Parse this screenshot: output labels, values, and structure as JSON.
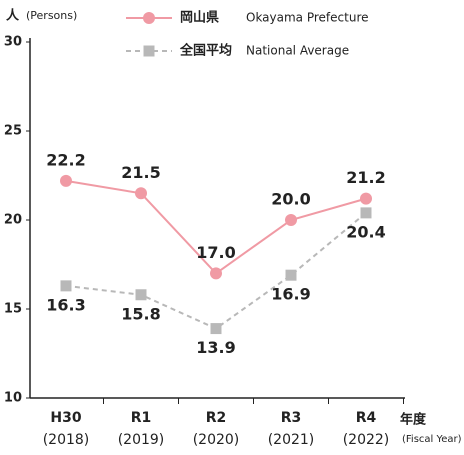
{
  "chart_data": {
    "type": "line",
    "y_label": "人",
    "y_unit": "(Persons)",
    "x_label": "年度",
    "x_unit": "(Fiscal Year)",
    "categories": [
      "H30",
      "R1",
      "R2",
      "R3",
      "R4"
    ],
    "category_years": [
      "(2018)",
      "(2019)",
      "(2020)",
      "(2021)",
      "(2022)"
    ],
    "ylim": [
      10,
      30
    ],
    "yticks": [
      10,
      15,
      20,
      25,
      30
    ],
    "series": [
      {
        "name": "岡山県",
        "name_en": "Okayama Prefecture",
        "color": "#f09aa4",
        "marker": "circle",
        "dashed": false,
        "label_side": "above",
        "values": [
          22.2,
          21.5,
          17.0,
          20.0,
          21.2
        ],
        "value_labels": [
          "22.2",
          "21.5",
          "17.0",
          "20.0",
          "21.2"
        ]
      },
      {
        "name": "全国平均",
        "name_en": "National Average",
        "color": "#b8b8b8",
        "marker": "square",
        "dashed": true,
        "label_side": "below",
        "values": [
          16.3,
          15.8,
          13.9,
          16.9,
          20.4
        ],
        "value_labels": [
          "16.3",
          "15.8",
          "13.9",
          "16.9",
          "20.4"
        ]
      }
    ]
  }
}
